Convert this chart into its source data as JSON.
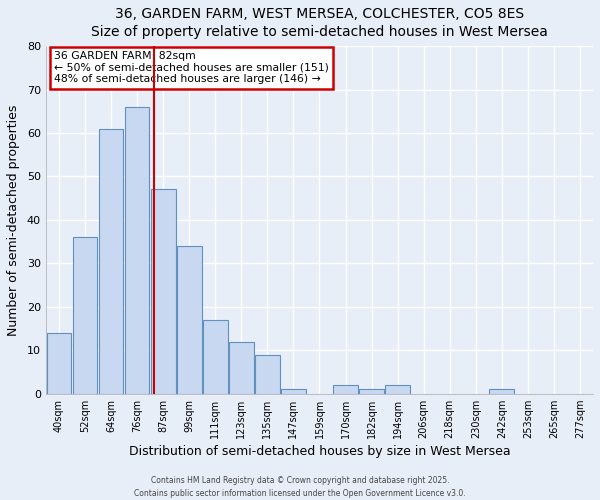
{
  "title": "36, GARDEN FARM, WEST MERSEA, COLCHESTER, CO5 8ES",
  "subtitle": "Size of property relative to semi-detached houses in West Mersea",
  "xlabel": "Distribution of semi-detached houses by size in West Mersea",
  "ylabel": "Number of semi-detached properties",
  "bar_labels": [
    "40sqm",
    "52sqm",
    "64sqm",
    "76sqm",
    "87sqm",
    "99sqm",
    "111sqm",
    "123sqm",
    "135sqm",
    "147sqm",
    "159sqm",
    "170sqm",
    "182sqm",
    "194sqm",
    "206sqm",
    "218sqm",
    "230sqm",
    "242sqm",
    "253sqm",
    "265sqm",
    "277sqm"
  ],
  "bar_values": [
    14,
    36,
    61,
    66,
    47,
    34,
    17,
    12,
    9,
    1,
    0,
    2,
    1,
    2,
    0,
    0,
    0,
    1,
    0,
    0,
    0
  ],
  "bar_color": "#c8d8f0",
  "bar_edge_color": "#6090c0",
  "vline_x": 3.65,
  "vline_color": "#cc0000",
  "annotation_title": "36 GARDEN FARM: 82sqm",
  "annotation_line1": "← 50% of semi-detached houses are smaller (151)",
  "annotation_line2": "48% of semi-detached houses are larger (146) →",
  "annotation_box_color": "#cc0000",
  "ylim": [
    0,
    80
  ],
  "yticks": [
    0,
    10,
    20,
    30,
    40,
    50,
    60,
    70,
    80
  ],
  "footer1": "Contains HM Land Registry data © Crown copyright and database right 2025.",
  "footer2": "Contains public sector information licensed under the Open Government Licence v3.0.",
  "bg_color": "#e8eef8",
  "plot_bg_color": "#e8eef8",
  "grid_color": "#ffffff",
  "title_fontsize": 10,
  "subtitle_fontsize": 9
}
